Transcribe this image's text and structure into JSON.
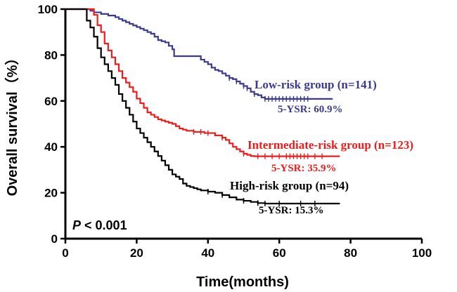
{
  "chart_data": {
    "type": "line",
    "title": "",
    "xlabel": "Time(months)",
    "ylabel": "Overall survival（%）",
    "xlim": [
      0,
      100
    ],
    "ylim": [
      0,
      100
    ],
    "xticks": [
      0,
      20,
      40,
      60,
      80,
      100
    ],
    "yticks": [
      0,
      20,
      40,
      60,
      80,
      100
    ],
    "annotation_p": "P < 0.001",
    "series": [
      {
        "name": "Low-risk group",
        "label": "Low-risk group (n=141)",
        "ysr": "5-YSR: 60.9%",
        "color": "#3b3a8c",
        "points": [
          [
            0,
            100
          ],
          [
            6,
            100
          ],
          [
            7,
            99.3
          ],
          [
            8,
            98.6
          ],
          [
            9,
            98.6
          ],
          [
            10,
            97.9
          ],
          [
            12,
            97.2
          ],
          [
            14,
            96.5
          ],
          [
            15,
            95.7
          ],
          [
            16,
            95
          ],
          [
            17,
            94.3
          ],
          [
            18,
            93.6
          ],
          [
            19,
            92.9
          ],
          [
            20,
            92.2
          ],
          [
            21,
            91.5
          ],
          [
            22,
            90.8
          ],
          [
            23,
            90
          ],
          [
            24,
            89.3
          ],
          [
            25,
            88
          ],
          [
            26,
            86.5
          ],
          [
            27,
            86
          ],
          [
            28,
            85.5
          ],
          [
            29,
            84
          ],
          [
            30,
            82.5
          ],
          [
            30.5,
            79.5
          ],
          [
            31,
            79.5
          ],
          [
            37,
            79.5
          ],
          [
            38,
            78
          ],
          [
            39,
            77
          ],
          [
            40,
            76
          ],
          [
            41,
            74.5
          ],
          [
            42,
            73.5
          ],
          [
            43,
            73
          ],
          [
            44,
            72
          ],
          [
            45,
            71
          ],
          [
            46,
            70
          ],
          [
            47,
            69.5
          ],
          [
            48,
            68.5
          ],
          [
            49,
            67.5
          ],
          [
            50,
            66.5
          ],
          [
            51,
            65.5
          ],
          [
            52,
            64
          ],
          [
            53,
            63
          ],
          [
            54,
            62.5
          ],
          [
            55,
            61.5
          ],
          [
            56,
            60.9
          ],
          [
            75,
            60.9
          ]
        ],
        "censor_marks": [
          46,
          48,
          50,
          51,
          53,
          56,
          57,
          58,
          59,
          60,
          61,
          62,
          63,
          64,
          65,
          66,
          67,
          68
        ]
      },
      {
        "name": "Intermediate-risk group",
        "label": "Intermediate-risk group (n=123)",
        "ysr": "5-YSR: 35.9%",
        "color": "#ee1c1c",
        "points": [
          [
            0,
            100
          ],
          [
            7,
            100
          ],
          [
            8,
            97.5
          ],
          [
            9,
            93
          ],
          [
            10,
            90
          ],
          [
            11,
            85
          ],
          [
            12,
            82
          ],
          [
            13,
            79
          ],
          [
            14,
            76
          ],
          [
            15,
            73
          ],
          [
            16,
            70
          ],
          [
            17,
            68
          ],
          [
            18,
            66
          ],
          [
            19,
            64
          ],
          [
            20,
            61
          ],
          [
            21,
            59
          ],
          [
            22,
            57
          ],
          [
            23,
            55
          ],
          [
            24,
            54
          ],
          [
            25,
            53
          ],
          [
            26,
            52
          ],
          [
            27,
            51.5
          ],
          [
            28,
            51
          ],
          [
            29,
            50.5
          ],
          [
            30,
            50
          ],
          [
            31,
            49
          ],
          [
            32,
            48
          ],
          [
            33,
            47.5
          ],
          [
            34,
            47
          ],
          [
            36,
            46.5
          ],
          [
            39,
            46
          ],
          [
            42,
            45
          ],
          [
            44,
            44
          ],
          [
            45,
            43
          ],
          [
            46,
            41.5
          ],
          [
            47,
            40
          ],
          [
            48,
            39
          ],
          [
            49,
            38
          ],
          [
            50,
            37
          ],
          [
            51,
            36.5
          ],
          [
            52,
            36
          ],
          [
            53,
            35.9
          ],
          [
            77,
            35.9
          ]
        ],
        "censor_marks": [
          36,
          38,
          40,
          44,
          50,
          54,
          56,
          58,
          60,
          62,
          63,
          64,
          65,
          66,
          67,
          68,
          70,
          72
        ]
      },
      {
        "name": "High-risk group",
        "label": "High-risk group (n=94)",
        "ysr": "5-YSR: 15.3%",
        "color": "#000000",
        "points": [
          [
            0,
            100
          ],
          [
            5,
            100
          ],
          [
            6,
            95
          ],
          [
            7,
            92
          ],
          [
            8,
            88
          ],
          [
            9,
            83
          ],
          [
            10,
            79
          ],
          [
            11,
            76
          ],
          [
            12,
            73
          ],
          [
            13,
            70
          ],
          [
            14,
            67
          ],
          [
            15,
            63
          ],
          [
            16,
            60
          ],
          [
            17,
            57
          ],
          [
            18,
            54
          ],
          [
            19,
            51
          ],
          [
            20,
            48
          ],
          [
            21,
            46
          ],
          [
            22,
            44
          ],
          [
            23,
            42
          ],
          [
            24,
            40
          ],
          [
            25,
            38
          ],
          [
            26,
            36
          ],
          [
            27,
            34
          ],
          [
            28,
            32
          ],
          [
            29,
            30
          ],
          [
            30,
            28
          ],
          [
            31,
            27
          ],
          [
            32,
            26
          ],
          [
            33,
            24
          ],
          [
            34,
            23
          ],
          [
            35,
            22.5
          ],
          [
            36,
            22
          ],
          [
            37,
            21.5
          ],
          [
            38,
            21
          ],
          [
            40,
            20.5
          ],
          [
            42,
            20
          ],
          [
            44,
            19
          ],
          [
            46,
            18
          ],
          [
            48,
            17
          ],
          [
            50,
            16.5
          ],
          [
            52,
            16
          ],
          [
            54,
            15.5
          ],
          [
            56,
            15.3
          ],
          [
            77,
            15.3
          ]
        ],
        "censor_marks": [
          40,
          44,
          50,
          54,
          56,
          60,
          66,
          70
        ]
      }
    ]
  }
}
